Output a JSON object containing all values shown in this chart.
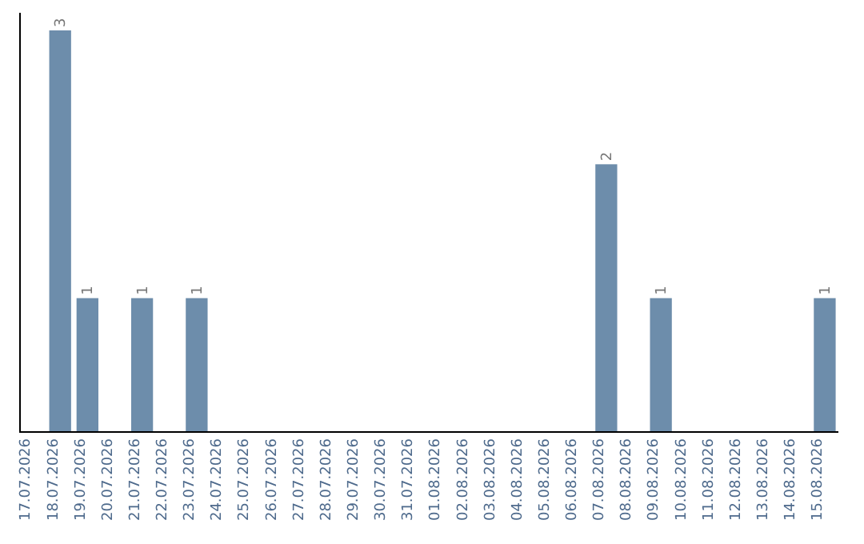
{
  "chart_data": {
    "type": "bar",
    "categories": [
      "17.07.2026",
      "18.07.2026",
      "19.07.2026",
      "20.07.2026",
      "21.07.2026",
      "22.07.2026",
      "23.07.2026",
      "24.07.2026",
      "25.07.2026",
      "26.07.2026",
      "27.07.2026",
      "28.07.2026",
      "29.07.2026",
      "30.07.2026",
      "31.07.2026",
      "01.08.2026",
      "02.08.2026",
      "03.08.2026",
      "04.08.2026",
      "05.08.2026",
      "06.08.2026",
      "07.08.2026",
      "08.08.2026",
      "09.08.2026",
      "10.08.2026",
      "11.08.2026",
      "12.08.2026",
      "13.08.2026",
      "14.08.2026",
      "15.08.2026"
    ],
    "values": [
      0,
      3,
      1,
      0,
      1,
      0,
      1,
      0,
      0,
      0,
      0,
      0,
      0,
      0,
      0,
      0,
      0,
      0,
      0,
      0,
      0,
      2,
      0,
      1,
      0,
      0,
      0,
      0,
      0,
      1
    ],
    "value_labels": [
      null,
      "3",
      "1",
      null,
      "1",
      null,
      "1",
      null,
      null,
      null,
      null,
      null,
      null,
      null,
      null,
      null,
      null,
      null,
      null,
      null,
      null,
      "2",
      null,
      "1",
      null,
      null,
      null,
      null,
      null,
      "1"
    ],
    "color": "#6d8dab",
    "grid": false
  }
}
